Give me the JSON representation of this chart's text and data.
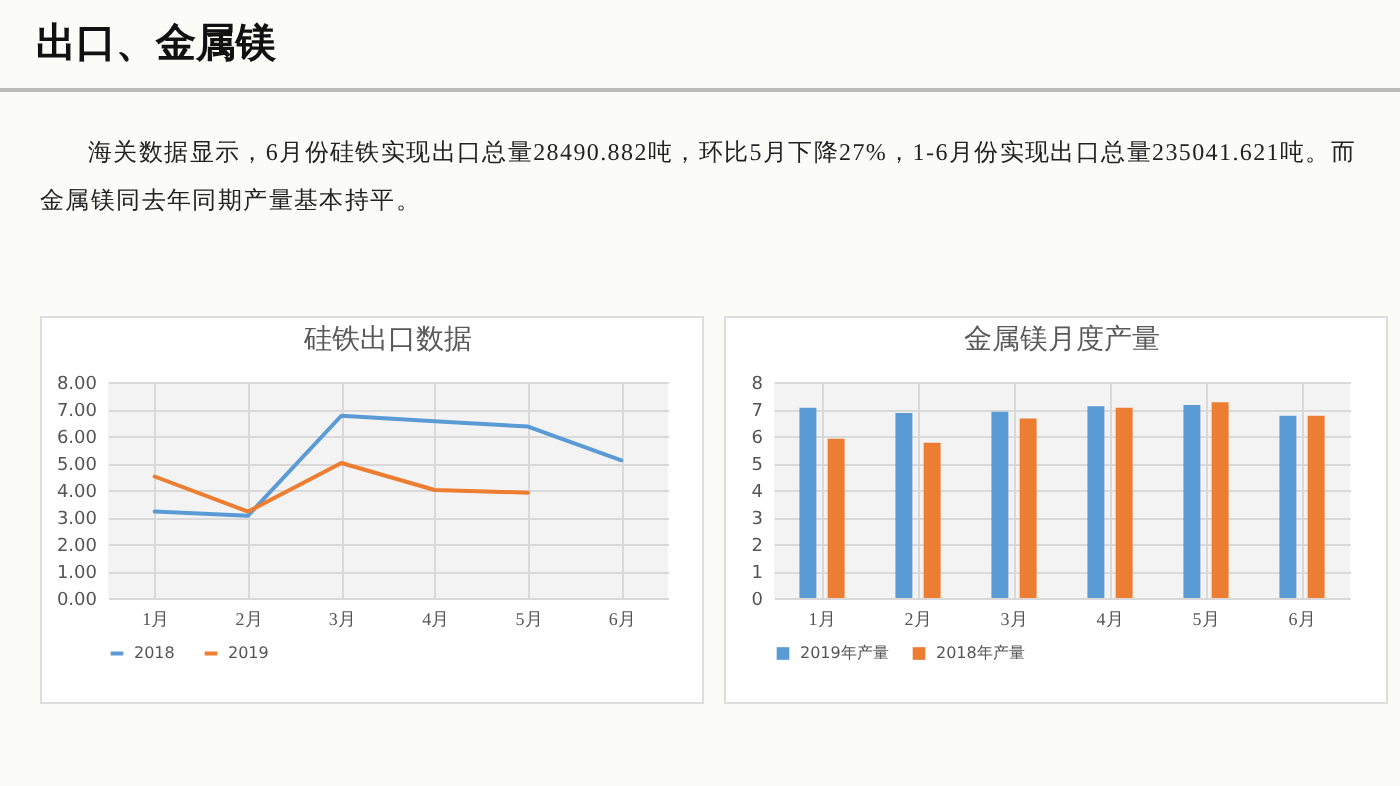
{
  "chart_data": [
    {
      "type": "line",
      "title": "硅铁出口数据",
      "annotations": [
        "出口、金属镁",
        "海关数据显示，6月份硅铁实现出口总量28490.882吨，环比5月下降27%，1-6月份实现出口总量235041.621吨。而金属镁同去年同期产量基本持平。"
      ],
      "categories": [
        "1月",
        "2月",
        "3月",
        "4月",
        "5月",
        "6月"
      ],
      "series": [
        {
          "name": "2018",
          "color": "#5b9bd5",
          "values": [
            3.2,
            3.05,
            6.75,
            6.55,
            6.35,
            5.1
          ]
        },
        {
          "name": "2019",
          "color": "#ed7d31",
          "values": [
            4.5,
            3.2,
            5.0,
            4.0,
            3.9,
            null
          ]
        }
      ],
      "ylim": [
        0,
        8
      ],
      "yticks": [
        {
          "value": 0,
          "label": "0.00"
        },
        {
          "value": 1,
          "label": "1.00"
        },
        {
          "value": 2,
          "label": "2.00"
        },
        {
          "value": 3,
          "label": "3.00"
        },
        {
          "value": 4,
          "label": "4.00"
        },
        {
          "value": 5,
          "label": "5.00"
        },
        {
          "value": 6,
          "label": "6.00"
        },
        {
          "value": 7,
          "label": "7.00"
        },
        {
          "value": 8,
          "label": "8.00"
        }
      ],
      "grid": true,
      "legend": "bottom"
    },
    {
      "type": "bar",
      "title": "金属镁月度产量",
      "categories": [
        "1月",
        "2月",
        "3月",
        "4月",
        "5月",
        "6月"
      ],
      "series": [
        {
          "name": "2019年产量",
          "color": "#5b9bd5",
          "values": [
            7.05,
            6.85,
            6.9,
            7.1,
            7.15,
            6.75
          ]
        },
        {
          "name": "2018年产量",
          "color": "#ed7d31",
          "values": [
            5.9,
            5.75,
            6.65,
            7.05,
            7.25,
            6.75
          ]
        }
      ],
      "ylim": [
        0,
        8
      ],
      "yticks": [
        0,
        1,
        2,
        3,
        4,
        5,
        6,
        7,
        8
      ],
      "grid": true,
      "legend": "bottom"
    }
  ]
}
